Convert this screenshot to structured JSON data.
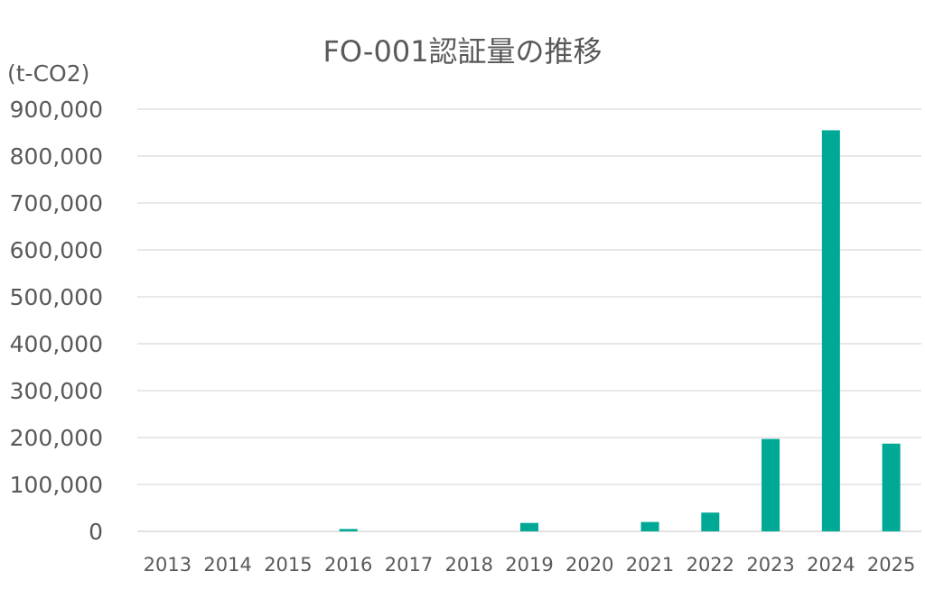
{
  "chart_data": {
    "type": "bar",
    "title": "FO-001認証量の推移",
    "unit_label": "(t-CO2)",
    "categories": [
      "2013",
      "2014",
      "2015",
      "2016",
      "2017",
      "2018",
      "2019",
      "2020",
      "2021",
      "2022",
      "2023",
      "2024",
      "2025"
    ],
    "values": [
      0,
      0,
      0,
      5000,
      0,
      0,
      18000,
      0,
      20000,
      40000,
      197000,
      855000,
      187000
    ],
    "ylim": [
      0,
      900000
    ],
    "yticks": [
      0,
      100000,
      200000,
      300000,
      400000,
      500000,
      600000,
      700000,
      800000,
      900000
    ],
    "ytick_labels": [
      "0",
      "100,000",
      "200,000",
      "300,000",
      "400,000",
      "500,000",
      "600,000",
      "700,000",
      "800,000",
      "900,000"
    ],
    "bar_color": "#00a896",
    "grid": true,
    "legend": "none"
  }
}
